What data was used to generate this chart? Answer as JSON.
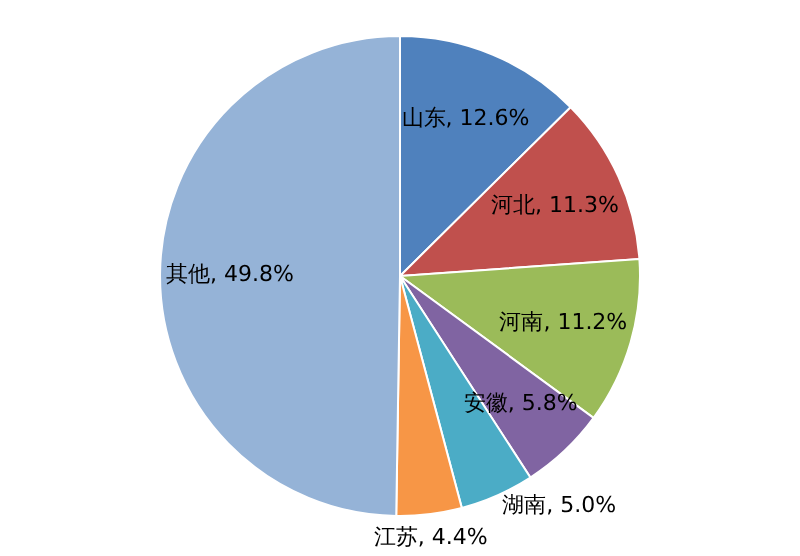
{
  "chart_data": {
    "type": "pie",
    "categories": [
      "山东",
      "河北",
      "河南",
      "安徽",
      "湖南",
      "江苏",
      "其他"
    ],
    "values": [
      12.6,
      11.3,
      11.2,
      5.8,
      5.0,
      4.4,
      49.8
    ],
    "value_labels": [
      "12.6%",
      "11.3%",
      "11.2%",
      "5.8%",
      "5.0%",
      "4.4%",
      "49.8%"
    ],
    "colors": [
      "#4f81bd",
      "#c0504d",
      "#9bbb59",
      "#8064a2",
      "#4bacc6",
      "#f79646",
      "#95b3d7"
    ]
  }
}
